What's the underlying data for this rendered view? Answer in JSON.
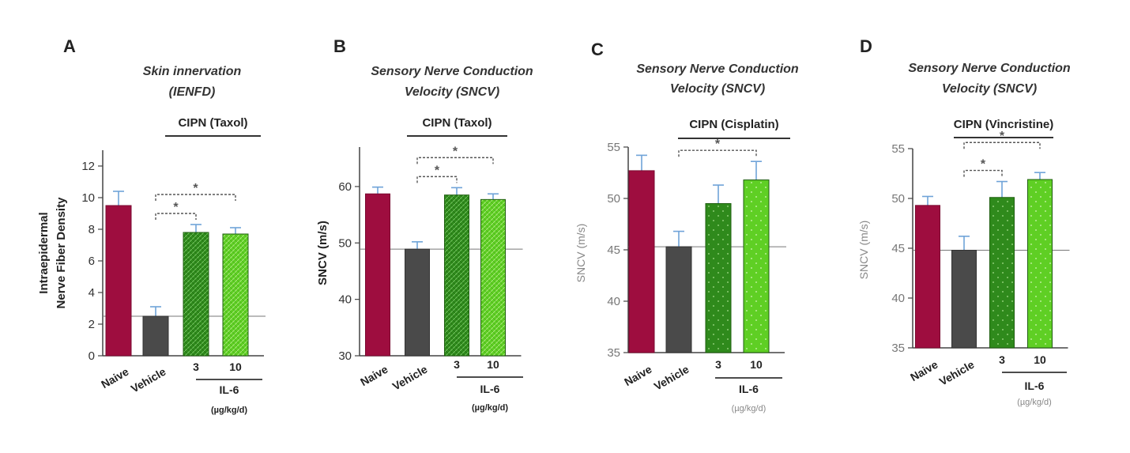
{
  "colors": {
    "naive": "#9e0d3f",
    "vehicle": "#4a4a4a",
    "dose_low": "#2f8a1c",
    "dose_high": "#5fcf24",
    "error_bar": "#6fa3d8",
    "axis": "#444444",
    "text": "#222222",
    "sig_line": "#555555"
  },
  "chart_data": [
    {
      "type": "bar",
      "panel": "A",
      "title_lines": [
        "Skin innervation",
        "(IENFD)"
      ],
      "group_label": "CIPN (Taxol)",
      "ylabel_lines": [
        "Intraepidermal",
        "Nerve Fiber Density"
      ],
      "ylim": [
        0,
        13
      ],
      "yticks": [
        0,
        2,
        4,
        6,
        8,
        10,
        12
      ],
      "categories": [
        "Naive",
        "Vehicle",
        "3",
        "10"
      ],
      "values": [
        9.5,
        2.5,
        7.8,
        7.7
      ],
      "errors": [
        0.9,
        0.6,
        0.5,
        0.4
      ],
      "reference_line": 2.5,
      "treatment_label": "IL-6",
      "unit_label": "(µg/kg/d)",
      "significance": [
        "*",
        "*"
      ]
    },
    {
      "type": "bar",
      "panel": "B",
      "title_lines": [
        "Sensory Nerve Conduction",
        "Velocity (SNCV)"
      ],
      "group_label": "CIPN (Taxol)",
      "ylabel_lines": [
        "SNCV (m/s)"
      ],
      "ylim": [
        30,
        67
      ],
      "yticks": [
        30,
        40,
        50,
        60
      ],
      "categories": [
        "Naive",
        "Vehicle",
        "3",
        "10"
      ],
      "values": [
        58.7,
        48.9,
        58.5,
        57.7
      ],
      "errors": [
        1.2,
        1.3,
        1.3,
        1.0
      ],
      "reference_line": 48.9,
      "treatment_label": "IL-6",
      "unit_label": "(µg/kg/d)",
      "significance": [
        "*",
        "*"
      ]
    },
    {
      "type": "bar",
      "panel": "C",
      "title_lines": [
        "Sensory Nerve Conduction",
        "Velocity (SNCV)"
      ],
      "group_label": "CIPN (Cisplatin)",
      "ylabel_lines": [
        "SNCV (m/s)"
      ],
      "ylim": [
        35,
        55
      ],
      "yticks": [
        35,
        40,
        45,
        50,
        55
      ],
      "categories": [
        "Naive",
        "Vehicle",
        "3",
        "10"
      ],
      "values": [
        52.7,
        45.3,
        49.5,
        51.8
      ],
      "errors": [
        1.5,
        1.5,
        1.8,
        1.8
      ],
      "reference_line": 45.3,
      "treatment_label": "IL-6",
      "unit_label": "(µg/kg/d)",
      "significance": [
        "*"
      ]
    },
    {
      "type": "bar",
      "panel": "D",
      "title_lines": [
        "Sensory Nerve Conduction",
        "Velocity (SNCV)"
      ],
      "group_label": "CIPN (Vincristine)",
      "ylabel_lines": [
        "SNCV (m/s)"
      ],
      "ylim": [
        35,
        55
      ],
      "yticks": [
        35,
        40,
        45,
        50,
        55
      ],
      "categories": [
        "Naive",
        "Vehicle",
        "3",
        "10"
      ],
      "values": [
        49.3,
        44.8,
        50.1,
        51.9
      ],
      "errors": [
        0.9,
        1.4,
        1.6,
        0.7
      ],
      "reference_line": 44.8,
      "treatment_label": "IL-6",
      "unit_label": "(µg/kg/d)",
      "significance": [
        "*",
        "*"
      ]
    }
  ]
}
